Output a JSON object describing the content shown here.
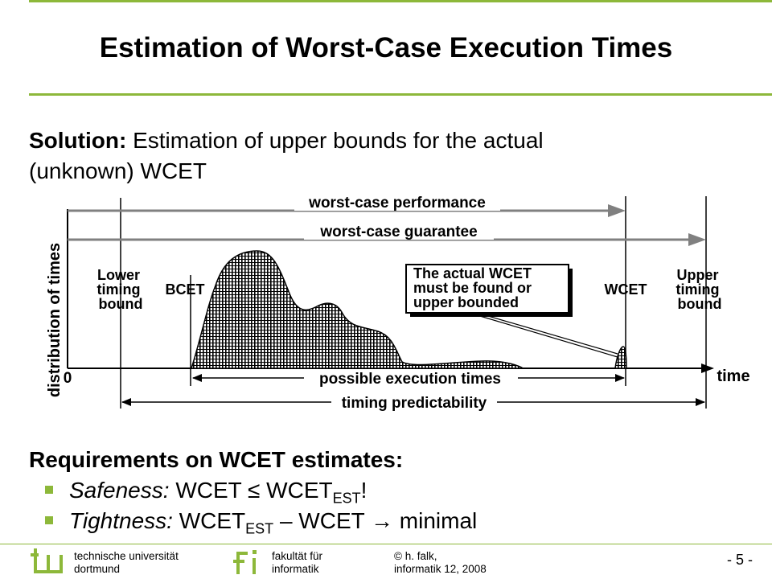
{
  "title": "Estimation of Worst-Case Execution Times",
  "solution": {
    "label": "Solution:",
    "line1": "Estimation of upper bounds for the actual",
    "line2": "(unknown) WCET"
  },
  "diagram": {
    "y_axis_label": "distribution of times",
    "origin_label": "0",
    "x_axis_label": "time",
    "worst_case_performance": "worst-case performance",
    "worst_case_guarantee": "worst-case guarantee",
    "lower_bound": [
      "Lower",
      "timing",
      "bound"
    ],
    "bcet": "BCET",
    "callout": [
      "The actual WCET",
      "must be found or",
      "upper bounded"
    ],
    "wcet": "WCET",
    "upper_bound": [
      "Upper",
      "timing",
      "bound"
    ],
    "possible_execution_times": "possible execution times",
    "timing_predictability": "timing predictability"
  },
  "requirements": {
    "heading": "Requirements on WCET estimates:",
    "safeness_label": "Safeness:",
    "safeness_lhs": "WCET",
    "safeness_op": "≤",
    "safeness_rhs": "WCET",
    "safeness_sub": "EST",
    "safeness_end": "!",
    "tightness_label": "Tightness:",
    "tightness_lhs": "WCET",
    "tightness_sub": "EST",
    "tightness_mid": "– WCET",
    "tightness_arrow": "→",
    "tightness_end": "minimal"
  },
  "footer": {
    "uni_line1": "technische universität",
    "uni_line2": "dortmund",
    "fac_line1": "fakultät für",
    "fac_line2": "informatik",
    "author_line1": "© h. falk,",
    "author_line2": "informatik 12,  2008",
    "page": "-  5 -"
  },
  "colors": {
    "accent": "#8db83a",
    "arrow_gray": "#808080"
  }
}
